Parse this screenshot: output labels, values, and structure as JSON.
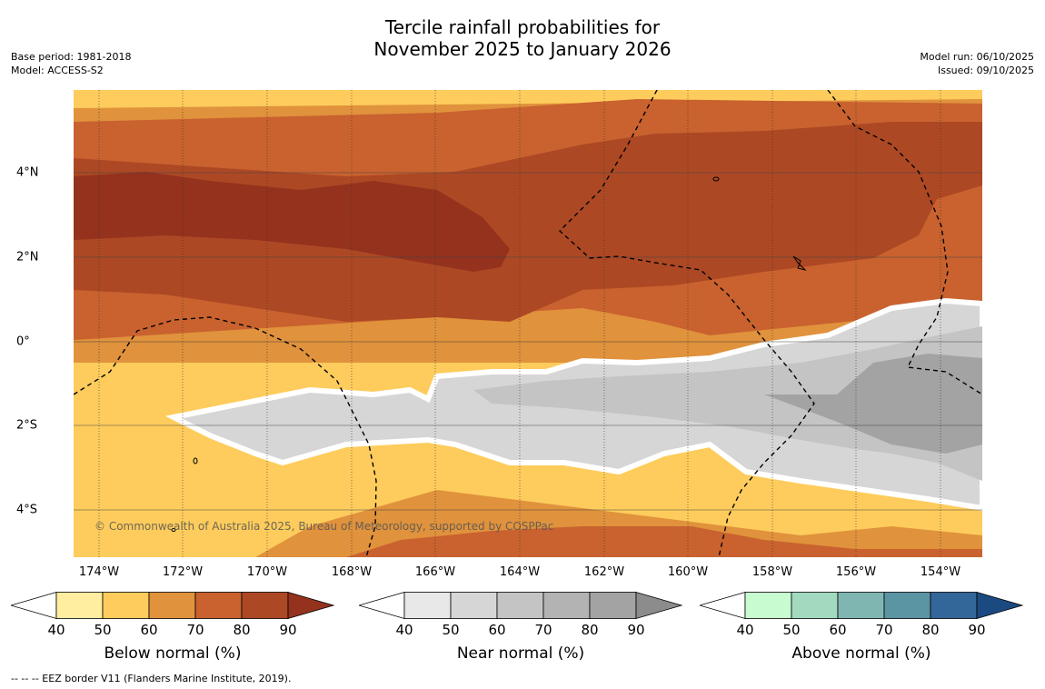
{
  "title": {
    "line1": "Tercile rainfall probabilities for",
    "line2": "November 2025 to January 2026"
  },
  "meta_left": {
    "base_period": "Base period: 1981-2018",
    "model": "Model: ACCESS-S2"
  },
  "meta_right": {
    "model_run": "Model run: 06/10/2025",
    "issued": "Issued: 09/10/2025"
  },
  "map": {
    "lon_labels": [
      "174°W",
      "172°W",
      "170°W",
      "168°W",
      "166°W",
      "164°W",
      "162°W",
      "160°W",
      "158°W",
      "156°W",
      "154°W"
    ],
    "lat_labels": [
      "4°N",
      "2°N",
      "0°",
      "2°S",
      "4°S"
    ],
    "copyright": "© Commonwealth of Australia 2025, Bureau of Meteorology, supported by COSPPac",
    "eez_note": "EEZ boundary shown as dashed line"
  },
  "colorbars": [
    {
      "name": "below",
      "title": "Below normal (%)",
      "ticks": [
        "40",
        "50",
        "60",
        "70",
        "80",
        "90"
      ],
      "colors": [
        "#ffffff",
        "#ffeda0",
        "#fecc5c",
        "#e0923c",
        "#c9622f",
        "#ad4824",
        "#94321e"
      ]
    },
    {
      "name": "near",
      "title": "Near normal (%)",
      "ticks": [
        "40",
        "50",
        "60",
        "70",
        "80",
        "90"
      ],
      "colors": [
        "#ffffff",
        "#e8e8e8",
        "#d6d6d6",
        "#c4c4c4",
        "#b3b3b3",
        "#a3a3a3",
        "#8c8c8c"
      ]
    },
    {
      "name": "above",
      "title": "Above normal (%)",
      "ticks": [
        "40",
        "50",
        "60",
        "70",
        "80",
        "90"
      ],
      "colors": [
        "#ffffff",
        "#c8fcd0",
        "#a2d9bf",
        "#80b6b2",
        "#5b94a3",
        "#336699",
        "#1a4a80"
      ]
    }
  ],
  "footnote": "--  --  -- EEZ border V11 (Flanders Marine Institute, 2019)."
}
